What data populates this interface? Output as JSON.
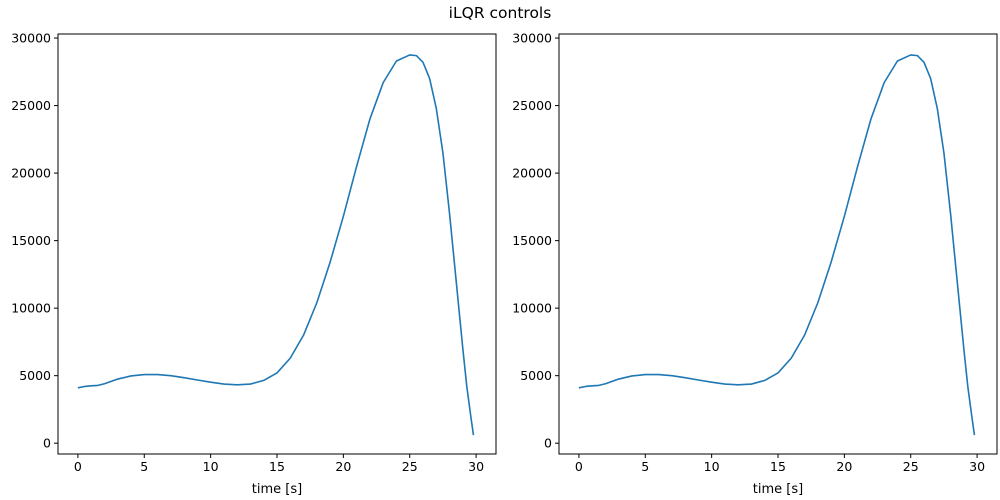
{
  "figure": {
    "suptitle": "iLQR controls"
  },
  "chart_data": [
    {
      "type": "line",
      "title": "",
      "xlabel": "time [s]",
      "ylabel": "",
      "xlim": [
        -1.5,
        31.5
      ],
      "ylim": [
        -800,
        30300
      ],
      "xticks": [
        0,
        5,
        10,
        15,
        20,
        25,
        30
      ],
      "yticks": [
        0,
        5000,
        10000,
        15000,
        20000,
        25000,
        30000
      ],
      "grid": false,
      "legend": "none",
      "line_color": "#1f77b4",
      "series": [
        {
          "x": [
            0,
            0.5,
            1,
            1.5,
            2,
            3,
            4,
            5,
            6,
            7,
            8,
            9,
            10,
            11,
            12,
            13,
            14,
            15,
            16,
            17,
            18,
            19,
            20,
            21,
            22,
            23,
            24,
            25,
            25.5,
            26,
            26.5,
            27,
            27.5,
            28,
            28.5,
            29,
            29.3,
            29.6,
            29.8
          ],
          "y": [
            4100,
            4200,
            4250,
            4280,
            4400,
            4750,
            4980,
            5080,
            5080,
            5000,
            4850,
            4680,
            4520,
            4380,
            4320,
            4380,
            4650,
            5200,
            6300,
            8000,
            10400,
            13400,
            16800,
            20500,
            24000,
            26700,
            28300,
            28750,
            28700,
            28200,
            27000,
            24800,
            21500,
            17000,
            12000,
            7000,
            4200,
            2000,
            600
          ]
        }
      ]
    },
    {
      "type": "line",
      "title": "",
      "xlabel": "time [s]",
      "ylabel": "",
      "xlim": [
        -1.5,
        31.5
      ],
      "ylim": [
        -800,
        30300
      ],
      "xticks": [
        0,
        5,
        10,
        15,
        20,
        25,
        30
      ],
      "yticks": [
        0,
        5000,
        10000,
        15000,
        20000,
        25000,
        30000
      ],
      "grid": false,
      "legend": "none",
      "line_color": "#1f77b4",
      "series": [
        {
          "x": [
            0,
            0.5,
            1,
            1.5,
            2,
            3,
            4,
            5,
            6,
            7,
            8,
            9,
            10,
            11,
            12,
            13,
            14,
            15,
            16,
            17,
            18,
            19,
            20,
            21,
            22,
            23,
            24,
            25,
            25.5,
            26,
            26.5,
            27,
            27.5,
            28,
            28.5,
            29,
            29.3,
            29.6,
            29.8
          ],
          "y": [
            4100,
            4200,
            4250,
            4280,
            4400,
            4750,
            4980,
            5080,
            5080,
            5000,
            4850,
            4680,
            4520,
            4380,
            4320,
            4380,
            4650,
            5200,
            6300,
            8000,
            10400,
            13400,
            16800,
            20500,
            24000,
            26700,
            28300,
            28750,
            28700,
            28200,
            27000,
            24800,
            21500,
            17000,
            12000,
            7000,
            4200,
            2000,
            600
          ]
        }
      ]
    }
  ]
}
